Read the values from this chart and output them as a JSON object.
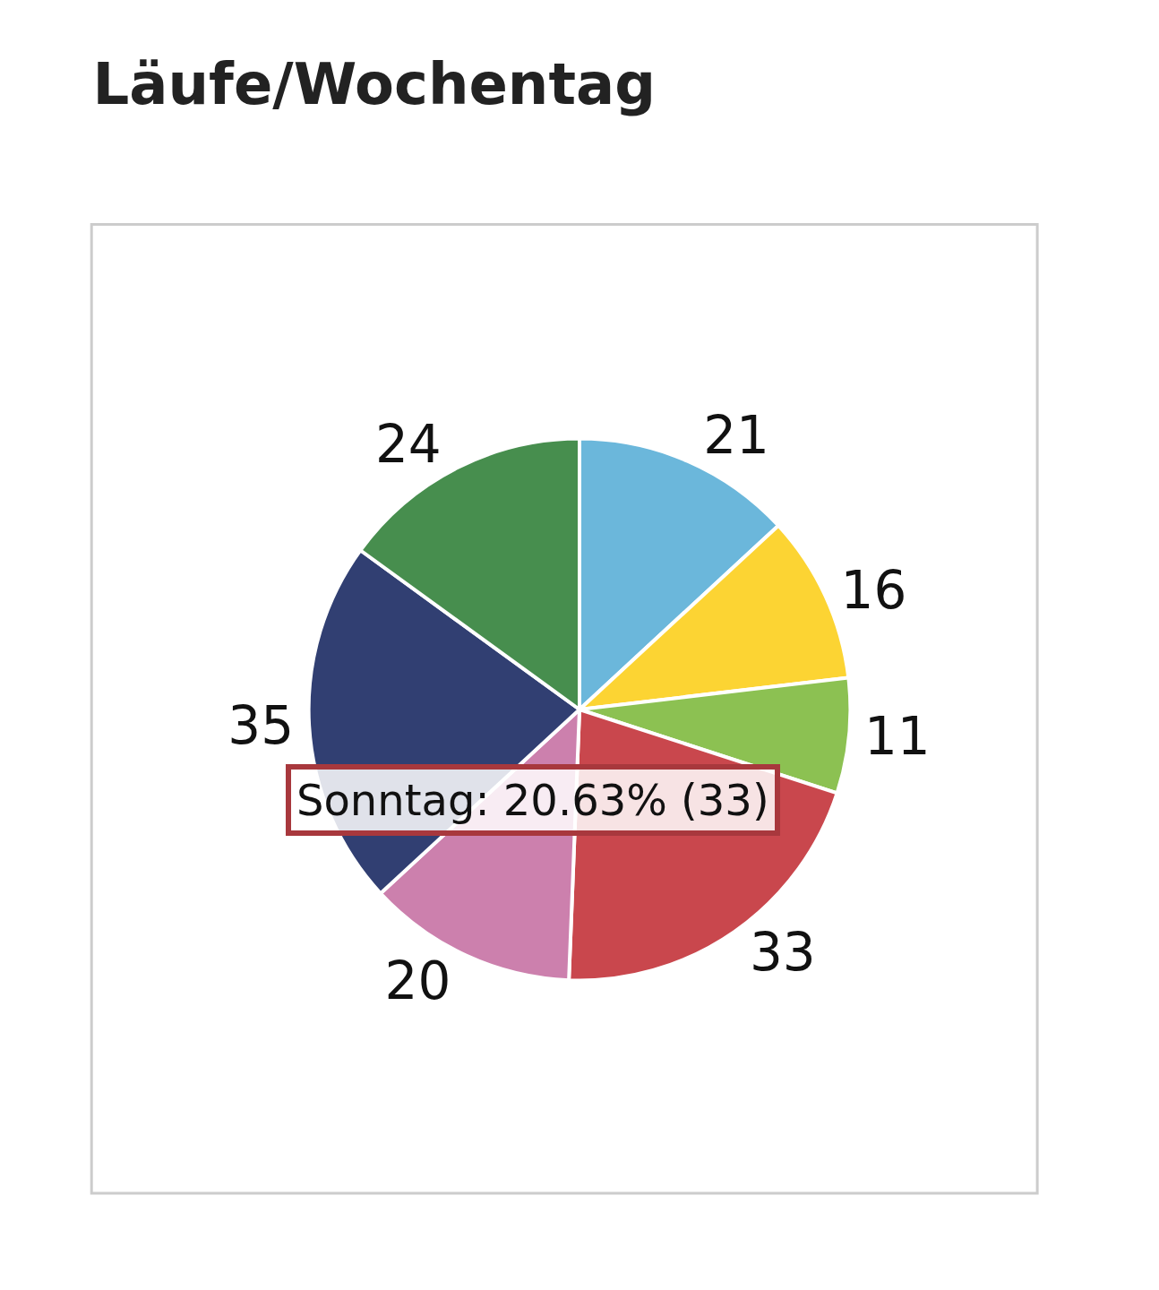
{
  "chart_data": {
    "type": "pie",
    "title": "Läufe/Wochentag",
    "categories": [
      null,
      null,
      null,
      null,
      null,
      null,
      null
    ],
    "values": [
      21,
      16,
      11,
      33,
      20,
      35,
      24
    ],
    "colors": [
      "#6bb7db",
      "#fcd433",
      "#8cc152",
      "#c9474d",
      "#cc80ad",
      "#313f72",
      "#478e4e"
    ],
    "data_labels": true,
    "annotations": [
      "Sonntag: 20.63% (33)"
    ]
  }
}
